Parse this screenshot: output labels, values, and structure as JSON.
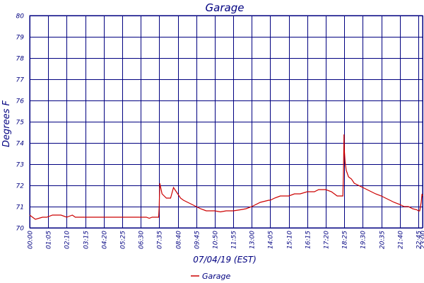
{
  "chart_data": {
    "type": "line",
    "title": "Garage",
    "xlabel": "07/04/19 (EST)",
    "ylabel": "Degrees F",
    "ylim": [
      70,
      80
    ],
    "xlim_minutes": [
      0,
      1380
    ],
    "yticks": [
      "70",
      "71",
      "72",
      "73",
      "74",
      "75",
      "76",
      "77",
      "78",
      "79",
      "80"
    ],
    "xticks": [
      "00:00",
      "01:05",
      "02:10",
      "03:15",
      "04:20",
      "05:25",
      "06:30",
      "07:35",
      "08:40",
      "09:45",
      "10:50",
      "11:55",
      "13:00",
      "14:05",
      "15:10",
      "16:15",
      "17:20",
      "18:25",
      "19:30",
      "20:35",
      "21:40",
      "22:45",
      "23:00"
    ],
    "grid": true,
    "legend_position": "bottom-center",
    "line_color": "#cc0000",
    "grid_color": "#000080",
    "text_color": "#000080",
    "series": [
      {
        "name": "Garage",
        "x": [
          "00:00",
          "00:10",
          "00:20",
          "00:45",
          "01:00",
          "01:20",
          "01:30",
          "01:50",
          "02:10",
          "02:30",
          "02:40",
          "03:00",
          "03:15",
          "03:30",
          "03:45",
          "04:00",
          "04:20",
          "04:40",
          "05:00",
          "05:25",
          "05:40",
          "06:00",
          "06:30",
          "06:50",
          "07:00",
          "07:10",
          "07:30",
          "07:33",
          "07:35",
          "07:37",
          "07:45",
          "08:00",
          "08:15",
          "08:25",
          "08:30",
          "08:40",
          "08:50",
          "09:00",
          "09:15",
          "09:30",
          "09:45",
          "10:00",
          "10:20",
          "10:50",
          "11:10",
          "11:30",
          "11:55",
          "12:20",
          "12:40",
          "13:00",
          "13:30",
          "14:00",
          "14:05",
          "14:20",
          "14:40",
          "14:55",
          "15:10",
          "15:30",
          "15:50",
          "16:15",
          "16:40",
          "16:55",
          "17:10",
          "17:20",
          "17:40",
          "17:50",
          "18:00",
          "18:10",
          "18:20",
          "18:22",
          "18:24",
          "18:25",
          "18:28",
          "18:32",
          "18:40",
          "18:50",
          "19:00",
          "19:15",
          "19:30",
          "19:45",
          "20:00",
          "20:15",
          "20:35",
          "20:50",
          "21:05",
          "21:20",
          "21:40",
          "21:55",
          "22:10",
          "22:25",
          "22:40",
          "22:45",
          "22:50",
          "22:55",
          "22:58",
          "23:00"
        ],
        "y": [
          70.6,
          70.5,
          70.4,
          70.5,
          70.5,
          70.6,
          70.6,
          70.6,
          70.5,
          70.6,
          70.5,
          70.5,
          70.5,
          70.5,
          70.5,
          70.5,
          70.5,
          70.5,
          70.5,
          70.5,
          70.5,
          70.5,
          70.5,
          70.5,
          70.45,
          70.5,
          70.5,
          70.5,
          71.0,
          72.1,
          71.6,
          71.4,
          71.4,
          71.9,
          71.8,
          71.6,
          71.4,
          71.3,
          71.2,
          71.1,
          71.0,
          70.9,
          70.8,
          70.8,
          70.75,
          70.8,
          70.8,
          70.85,
          70.9,
          71.0,
          71.2,
          71.3,
          71.3,
          71.4,
          71.5,
          71.5,
          71.5,
          71.6,
          71.6,
          71.7,
          71.7,
          71.8,
          71.8,
          71.8,
          71.7,
          71.6,
          71.5,
          71.5,
          71.5,
          72.5,
          74.4,
          73.7,
          73.1,
          72.7,
          72.4,
          72.3,
          72.1,
          72.0,
          71.9,
          71.8,
          71.7,
          71.6,
          71.5,
          71.4,
          71.3,
          71.2,
          71.1,
          71.0,
          71.0,
          70.9,
          70.85,
          70.8,
          70.8,
          71.2,
          71.6,
          71.5
        ]
      }
    ]
  }
}
